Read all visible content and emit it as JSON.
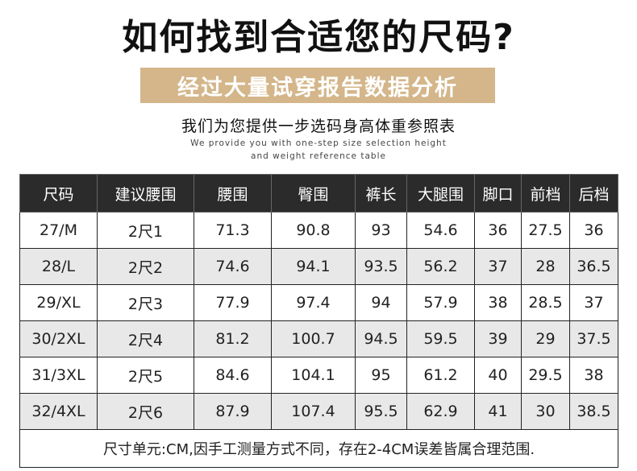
{
  "title": "如何找到合适您的尺码?",
  "banner": "经过大量试穿报告数据分析",
  "subtitle": "我们为您提供一步选码身高体重参照表",
  "en_line1": "We provide you with one-step size selection height",
  "en_line2": "and weight reference table",
  "table": {
    "headers": [
      "尺码",
      "建议腰围",
      "腰围",
      "臀围",
      "裤长",
      "大腿围",
      "脚口",
      "前档",
      "后档"
    ],
    "rows": [
      [
        "27/M",
        "2尺1",
        "71.3",
        "90.8",
        "93",
        "54.6",
        "36",
        "27.5",
        "36"
      ],
      [
        "28/L",
        "2尺2",
        "74.6",
        "94.1",
        "93.5",
        "56.2",
        "37",
        "28",
        "36.5"
      ],
      [
        "29/XL",
        "2尺3",
        "77.9",
        "97.4",
        "94",
        "57.9",
        "38",
        "28.5",
        "37"
      ],
      [
        "30/2XL",
        "2尺4",
        "81.2",
        "100.7",
        "94.5",
        "59.5",
        "39",
        "29",
        "37.5"
      ],
      [
        "31/3XL",
        "2尺5",
        "84.6",
        "104.1",
        "95",
        "61.2",
        "40",
        "29.5",
        "38"
      ],
      [
        "32/4XL",
        "2尺6",
        "87.9",
        "107.4",
        "95.5",
        "62.9",
        "41",
        "30",
        "38.5"
      ]
    ],
    "note": "尺寸单元:CM,因手工测量方式不同，存在2-4CM误差皆属合理范围."
  },
  "colors": {
    "banner_bg": "#d4b68a",
    "header_bg": "#2b2b2b",
    "shade_row": "#e8e8e8"
  }
}
